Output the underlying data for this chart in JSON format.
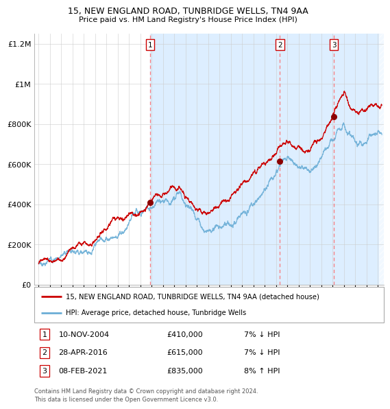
{
  "title1": "15, NEW ENGLAND ROAD, TUNBRIDGE WELLS, TN4 9AA",
  "title2": "Price paid vs. HM Land Registry's House Price Index (HPI)",
  "ylim": [
    0,
    1250000
  ],
  "xlim_start": 1994.6,
  "xlim_end": 2025.5,
  "yticks": [
    0,
    200000,
    400000,
    600000,
    800000,
    1000000,
    1200000
  ],
  "ytick_labels": [
    "£0",
    "£200K",
    "£400K",
    "£600K",
    "£800K",
    "£1M",
    "£1.2M"
  ],
  "transactions": [
    {
      "num": 1,
      "year": 2004.86,
      "price": 410000,
      "label": "10-NOV-2004",
      "price_label": "£410,000",
      "hpi_label": "7% ↓ HPI"
    },
    {
      "num": 2,
      "year": 2016.33,
      "price": 615000,
      "label": "28-APR-2016",
      "price_label": "£615,000",
      "hpi_label": "7% ↓ HPI"
    },
    {
      "num": 3,
      "year": 2021.11,
      "price": 835000,
      "label": "08-FEB-2021",
      "price_label": "£835,000",
      "hpi_label": "8% ↑ HPI"
    }
  ],
  "legend_line1": "15, NEW ENGLAND ROAD, TUNBRIDGE WELLS, TN4 9AA (detached house)",
  "legend_line2": "HPI: Average price, detached house, Tunbridge Wells",
  "footer1": "Contains HM Land Registry data © Crown copyright and database right 2024.",
  "footer2": "This data is licensed under the Open Government Licence v3.0.",
  "hpi_color": "#6baed6",
  "price_color": "#cc0000",
  "bg_color": "#ddeeff",
  "grid_color": "#cccccc",
  "dot_color": "#8b0000",
  "vline_color": "#ff6666"
}
